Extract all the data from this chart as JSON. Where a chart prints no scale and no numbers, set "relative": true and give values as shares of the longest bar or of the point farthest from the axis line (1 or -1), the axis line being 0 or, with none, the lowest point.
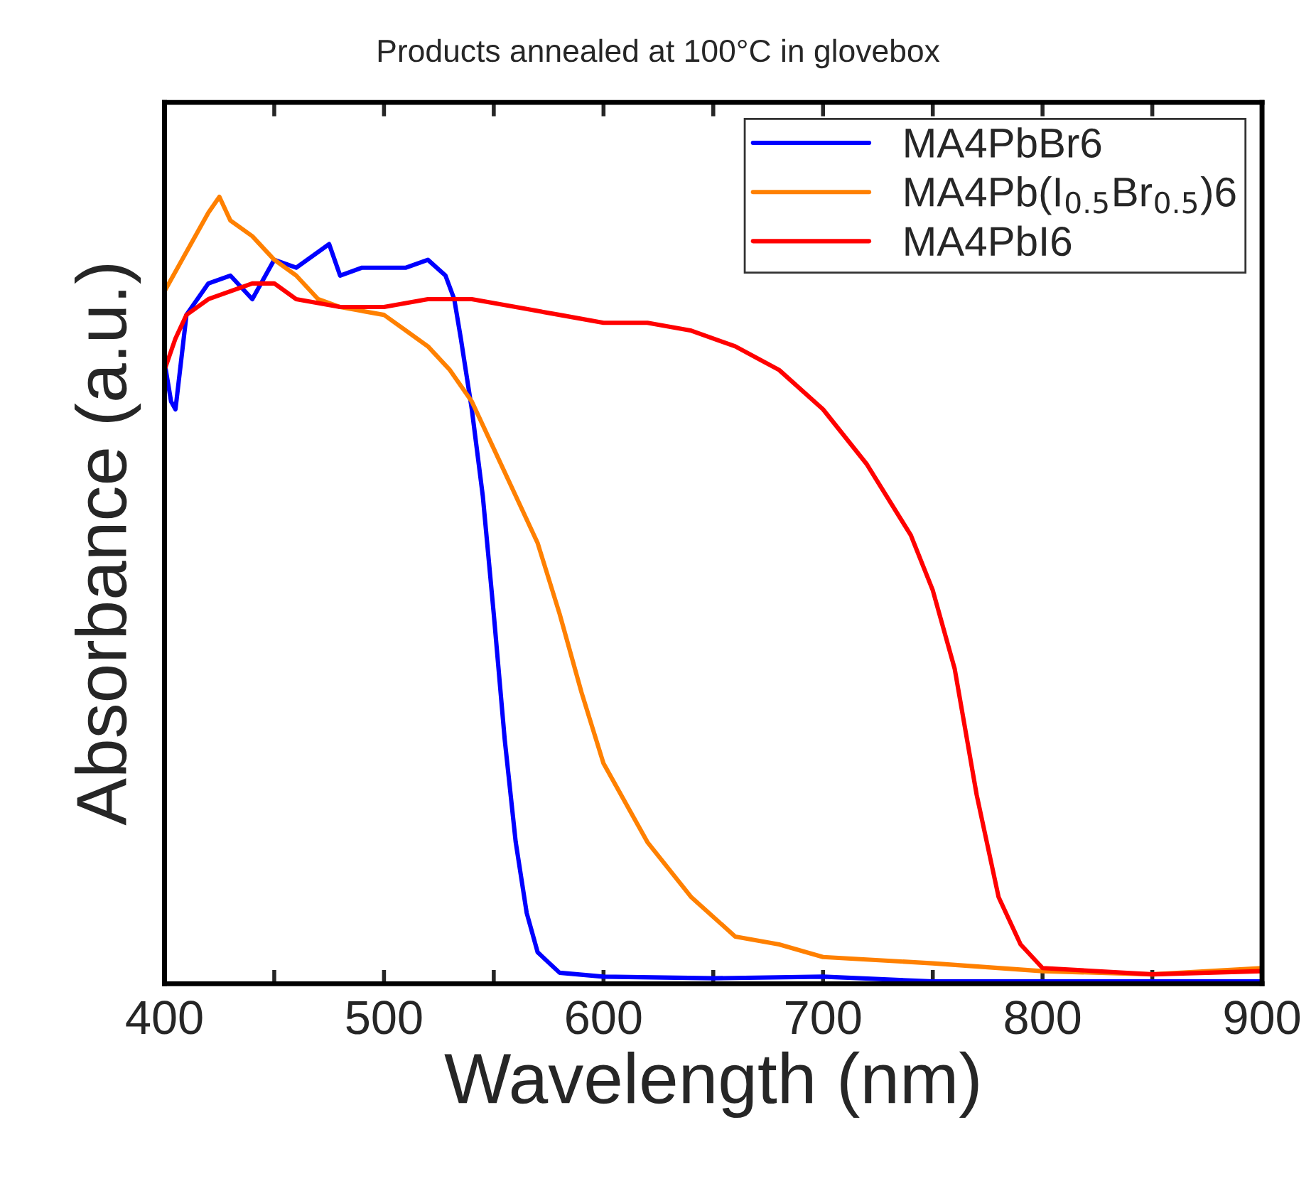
{
  "chart_data": {
    "type": "line",
    "title": "Products annealed at 100°C in glovebox",
    "xlabel": "Wavelength (nm)",
    "ylabel": "Absorbance (a.u.)",
    "relative": true,
    "legend": "top right",
    "grid": false,
    "xlim": [
      400,
      900
    ],
    "xticks": [
      400,
      {
        "value": 450,
        "label": null
      },
      500,
      {
        "value": 550,
        "label": null
      },
      600,
      {
        "value": 650,
        "label": null
      },
      700,
      {
        "value": 750,
        "label": null
      },
      800,
      {
        "value": 850,
        "label": null
      },
      900
    ],
    "series": [
      {
        "name": "MA4PbBr6",
        "color": "#0000ff",
        "x": [
          400,
          403,
          405,
          410,
          420,
          430,
          440,
          450,
          460,
          475,
          480,
          490,
          500,
          510,
          520,
          528,
          532,
          535,
          540,
          545,
          550,
          555,
          560,
          565,
          570,
          580,
          600,
          650,
          700,
          750,
          800,
          850,
          900
        ],
        "values": [
          0.79,
          0.74,
          0.73,
          0.85,
          0.89,
          0.9,
          0.87,
          0.92,
          0.91,
          0.94,
          0.9,
          0.91,
          0.91,
          0.91,
          0.92,
          0.9,
          0.87,
          0.82,
          0.73,
          0.62,
          0.47,
          0.31,
          0.18,
          0.09,
          0.04,
          0.014,
          0.009,
          0.007,
          0.009,
          0.003,
          0.003,
          0.003,
          0.003
        ]
      },
      {
        "name": "MA4Pb(I$_{0.5}$Br$_{0.5}$)6",
        "color": "#ff8000",
        "x": [
          400,
          410,
          420,
          425,
          430,
          440,
          450,
          460,
          470,
          480,
          500,
          510,
          520,
          530,
          540,
          550,
          560,
          570,
          580,
          590,
          600,
          620,
          640,
          660,
          680,
          700,
          750,
          800,
          850,
          900
        ],
        "values": [
          0.88,
          0.93,
          0.98,
          1.0,
          0.97,
          0.95,
          0.92,
          0.9,
          0.87,
          0.86,
          0.85,
          0.83,
          0.81,
          0.78,
          0.74,
          0.68,
          0.62,
          0.56,
          0.47,
          0.37,
          0.28,
          0.18,
          0.11,
          0.06,
          0.05,
          0.034,
          0.026,
          0.016,
          0.012,
          0.02
        ]
      },
      {
        "name": "MA4PbI6",
        "color": "#ff0000",
        "x": [
          400,
          405,
          410,
          420,
          430,
          440,
          450,
          460,
          480,
          500,
          520,
          540,
          560,
          580,
          600,
          620,
          640,
          660,
          680,
          700,
          720,
          740,
          750,
          760,
          770,
          780,
          790,
          800,
          850,
          900
        ],
        "values": [
          0.78,
          0.82,
          0.85,
          0.87,
          0.88,
          0.89,
          0.89,
          0.87,
          0.86,
          0.86,
          0.87,
          0.87,
          0.86,
          0.85,
          0.84,
          0.84,
          0.83,
          0.81,
          0.78,
          0.73,
          0.66,
          0.57,
          0.5,
          0.4,
          0.24,
          0.11,
          0.05,
          0.02,
          0.012,
          0.016
        ]
      }
    ]
  }
}
